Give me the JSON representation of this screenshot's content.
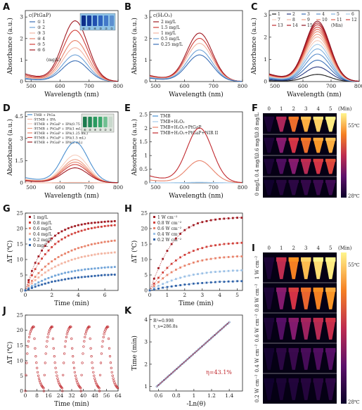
{
  "panels": {
    "A": "A",
    "B": "B",
    "C": "C",
    "D": "D",
    "E": "E",
    "F": "F",
    "G": "G",
    "H": "H",
    "I": "I",
    "J": "J",
    "K": "K"
  },
  "chart_data": [
    {
      "id": "A",
      "type": "line",
      "xlabel": "Wavelength (nm)",
      "ylabel": "Absorbance (a.u.)",
      "xlim": [
        480,
        800
      ],
      "ylim": [
        0,
        3.3
      ],
      "xticks": [
        500,
        600,
        700,
        800
      ],
      "yticks": [
        0,
        1,
        2,
        3
      ],
      "legend_title": "c(PtGaP)",
      "legend_unit": "(mg/L)",
      "peak_x": 652,
      "base_x": 480,
      "base_y_ratio": 0.13,
      "width": 62,
      "series": [
        {
          "name": "① 1",
          "peak": 0.95,
          "color": "#3b6fb6"
        },
        {
          "name": "② 2",
          "peak": 1.22,
          "color": "#6fa3d8"
        },
        {
          "name": "③ 3",
          "peak": 1.55,
          "color": "#f3b5a2"
        },
        {
          "name": "④ 4",
          "peak": 1.88,
          "color": "#e8836b"
        },
        {
          "name": "⑤ 5",
          "peak": 2.35,
          "color": "#d1403a"
        },
        {
          "name": "⑥ 6",
          "peak": 2.78,
          "color": "#a11a22"
        }
      ],
      "inset_labels": [
        "⑥",
        "⑤",
        "④",
        "③",
        "②",
        "①"
      ]
    },
    {
      "id": "B",
      "type": "line",
      "xlabel": "Wavelength (nm)",
      "ylabel": "Absorbance (a.u.)",
      "xlim": [
        480,
        800
      ],
      "ylim": [
        0,
        3.3
      ],
      "xticks": [
        500,
        600,
        700,
        800
      ],
      "yticks": [
        0,
        1,
        2,
        3
      ],
      "legend_title": "c(H₂O₂)",
      "peak_x": 652,
      "base_x": 480,
      "base_y_ratio": 0.13,
      "width": 62,
      "series": [
        {
          "name": "2 mg/L",
          "peak": 2.22,
          "color": "#a11a22"
        },
        {
          "name": "1.5 mg/L",
          "peak": 1.98,
          "color": "#d1403a"
        },
        {
          "name": "1 mg/L",
          "peak": 1.75,
          "color": "#f3b5a2"
        },
        {
          "name": "0.5 mg/L",
          "peak": 1.45,
          "color": "#6fa3d8"
        },
        {
          "name": "0.25 mg/L",
          "peak": 1.22,
          "color": "#3b6fb6"
        }
      ]
    },
    {
      "id": "C",
      "type": "line",
      "xlabel": "Wavelength (nm)",
      "ylabel": "Absorbance (a.u.)",
      "xlim": [
        480,
        800
      ],
      "ylim": [
        0,
        3.2
      ],
      "xticks": [
        500,
        600,
        700,
        800
      ],
      "yticks": [
        0,
        1,
        2,
        3
      ],
      "legend_unit": "(Min)",
      "peak_x": 652,
      "base_x": 480,
      "base_y_ratio": 0.13,
      "width": 62,
      "series": [
        {
          "name": "1",
          "peak": 0.32,
          "color": "#1a1a1a"
        },
        {
          "name": "2",
          "peak": 0.65,
          "color": "#2a3a80"
        },
        {
          "name": "3",
          "peak": 0.95,
          "color": "#3b6fb6"
        },
        {
          "name": "4",
          "peak": 1.22,
          "color": "#5c8fcc"
        },
        {
          "name": "5",
          "peak": 1.45,
          "color": "#7fb0de"
        },
        {
          "name": "6",
          "peak": 1.65,
          "color": "#a6cbea"
        },
        {
          "name": "7",
          "peak": 1.82,
          "color": "#f6cdbd"
        },
        {
          "name": "8",
          "peak": 1.98,
          "color": "#f3b5a2"
        },
        {
          "name": "9",
          "peak": 2.1,
          "color": "#eea085"
        },
        {
          "name": "10",
          "peak": 2.22,
          "color": "#e8836b"
        },
        {
          "name": "11",
          "peak": 2.32,
          "color": "#df6553"
        },
        {
          "name": "12",
          "peak": 2.42,
          "color": "#d1403a"
        },
        {
          "name": "13",
          "peak": 2.52,
          "color": "#bf2d30"
        },
        {
          "name": "14",
          "peak": 2.6,
          "color": "#ad1f28"
        },
        {
          "name": "15",
          "peak": 2.68,
          "color": "#8e1220"
        }
      ]
    },
    {
      "id": "D",
      "type": "line",
      "xlabel": "Wavelength (nm)",
      "ylabel": "Absorbance (a.u.)",
      "xlim": [
        480,
        800
      ],
      "ylim": [
        0,
        4.8
      ],
      "xticks": [
        500,
        600,
        700,
        800
      ],
      "yticks": [
        0,
        1.5,
        3.0,
        4.5
      ],
      "peak_x": 652,
      "base_x": 480,
      "base_y_ratio": 0.13,
      "width": 62,
      "series": [
        {
          "name": "TMB + PtGa",
          "peak": 2.72,
          "color": "#4a8fd0"
        },
        {
          "name": "①TMB + IPA",
          "peak": 0.03,
          "color": "#f3b5a2"
        },
        {
          "name": "②TMB + PtGaP + IPA(0.75 mL)",
          "peak": 1.85,
          "color": "#f6cdbd"
        },
        {
          "name": "③TMB + PtGaP + IPA(1 mL)",
          "peak": 1.55,
          "color": "#eea085"
        },
        {
          "name": "④TMB + PtGaP + IPA(1.25 mL)",
          "peak": 1.38,
          "color": "#e8836b"
        },
        {
          "name": "⑤TMB + PtGaP + IPA(1.5 mL)",
          "peak": 1.22,
          "color": "#d1403a"
        },
        {
          "name": "⑥TMB + PtGaP + IPA(2 mL)",
          "peak": 1.0,
          "color": "#a11a22"
        }
      ],
      "inset_labels": [
        "⑥",
        "⑤",
        "④",
        "③",
        "②",
        "①"
      ]
    },
    {
      "id": "E",
      "type": "line",
      "xlabel": "Wavelength (nm)",
      "ylabel": "Absorbance (a.u.)",
      "xlim": [
        480,
        800
      ],
      "ylim": [
        0,
        2.6
      ],
      "xticks": [
        500,
        600,
        700,
        800
      ],
      "yticks": [
        0.0,
        0.5,
        1.0,
        1.5,
        2.0,
        2.5
      ],
      "peak_x": 652,
      "base_x": 480,
      "base_y_ratio": 0.13,
      "width": 62,
      "series": [
        {
          "name": "TMB",
          "peak": 0.01,
          "color": "#4a8fd0"
        },
        {
          "name": "TMB+H₂O₂",
          "peak": 0.02,
          "color": "#a6cbea"
        },
        {
          "name": "TMB+H₂O₂+PtGaP",
          "peak": 0.8,
          "color": "#e8836b"
        },
        {
          "name": "TMB+H₂O₂+PtGaP+NIR II",
          "peak": 1.98,
          "color": "#c0282d"
        }
      ]
    },
    {
      "id": "G",
      "type": "scatter",
      "xlabel": "Time (min)",
      "ylabel": "ΔT (℃)",
      "xlim": [
        0,
        7
      ],
      "ylim": [
        0,
        25
      ],
      "xticks": [
        0,
        2,
        4,
        6
      ],
      "yticks": [
        0,
        5,
        10,
        15,
        20,
        25
      ],
      "x": [
        0,
        0.25,
        0.5,
        0.75,
        1,
        1.25,
        1.5,
        1.75,
        2,
        2.25,
        2.5,
        2.75,
        3,
        3.25,
        3.5,
        3.75,
        4,
        4.25,
        4.5,
        4.75,
        5,
        5.25,
        5.5,
        5.75,
        6,
        6.25,
        6.5,
        6.75
      ],
      "series": [
        {
          "name": "1 mg/L",
          "color": "#a11a22",
          "values": [
            0,
            3.3,
            6.3,
            8.9,
            11,
            12.9,
            14.4,
            15.7,
            16.8,
            17.7,
            18.5,
            19.1,
            19.6,
            20.1,
            20.5,
            20.8,
            21.1,
            21.3,
            21.5,
            21.7,
            21.8,
            21.9,
            22,
            22.1,
            22.2,
            22.3,
            22.3,
            22.4
          ]
        },
        {
          "name": "0.8 mg/L",
          "color": "#d1403a",
          "values": [
            0,
            2.6,
            4.9,
            6.9,
            8.7,
            10.3,
            11.7,
            12.9,
            14,
            15,
            15.8,
            16.5,
            17.1,
            17.7,
            18.2,
            18.6,
            19,
            19.3,
            19.6,
            19.9,
            20.1,
            20.3,
            20.5,
            20.6,
            20.8,
            20.9,
            21,
            21.1
          ]
        },
        {
          "name": "0.6 mg/L",
          "color": "#e8836b",
          "values": [
            0,
            1.6,
            3.1,
            4.4,
            5.6,
            6.7,
            7.7,
            8.6,
            9.4,
            10.1,
            10.8,
            11.4,
            11.9,
            12.4,
            12.9,
            13.3,
            13.7,
            14,
            14.3,
            14.6,
            14.9,
            15.1,
            15.3,
            15.5,
            15.7,
            15.8,
            16,
            16.1
          ]
        },
        {
          "name": "0.4 mg/L",
          "color": "#f3b5a2",
          "values": [
            0,
            1.2,
            2.3,
            3.3,
            4.2,
            5,
            5.8,
            6.5,
            7.1,
            7.7,
            8.2,
            8.7,
            9.1,
            9.5,
            9.9,
            10.2,
            10.5,
            10.8,
            11,
            11.2,
            11.4,
            11.6,
            11.8,
            11.9,
            12,
            12.1,
            12.2,
            12.3
          ]
        },
        {
          "name": "0.2 mg/L",
          "color": "#6fa3d8",
          "values": [
            0,
            0.7,
            1.4,
            2,
            2.6,
            3.1,
            3.6,
            4,
            4.4,
            4.8,
            5.1,
            5.4,
            5.7,
            5.9,
            6.1,
            6.3,
            6.5,
            6.6,
            6.8,
            6.9,
            7,
            7.1,
            7.2,
            7.3,
            7.4,
            7.5,
            7.5,
            7.6
          ]
        },
        {
          "name": "0 mg/L",
          "color": "#2f62a8",
          "values": [
            0,
            0.4,
            0.8,
            1.2,
            1.6,
            1.9,
            2.2,
            2.5,
            2.8,
            3,
            3.2,
            3.4,
            3.6,
            3.8,
            3.9,
            4.1,
            4.2,
            4.3,
            4.4,
            4.5,
            4.6,
            4.7,
            4.8,
            4.9,
            5,
            5,
            5.1,
            5.1
          ]
        }
      ]
    },
    {
      "id": "H",
      "type": "scatter",
      "xlabel": "Time (min)",
      "ylabel": "ΔT (℃)",
      "xlim": [
        0,
        5.3
      ],
      "ylim": [
        0,
        25
      ],
      "xticks": [
        0,
        1,
        2,
        3,
        4,
        5
      ],
      "yticks": [
        0,
        5,
        10,
        15,
        20,
        25
      ],
      "x": [
        0,
        0.25,
        0.5,
        0.75,
        1,
        1.25,
        1.5,
        1.75,
        2,
        2.25,
        2.5,
        2.75,
        3,
        3.25,
        3.5,
        3.75,
        4,
        4.25,
        4.5,
        4.75,
        5,
        5.25
      ],
      "series": [
        {
          "name": "1 W cm⁻²",
          "color": "#a11a22",
          "values": [
            0,
            3.8,
            7.2,
            10.2,
            12.8,
            15,
            16.8,
            18.3,
            19.5,
            20.4,
            21.1,
            21.7,
            22.1,
            22.4,
            22.7,
            22.9,
            23.1,
            23.2,
            23.3,
            23.4,
            23.5,
            23.5
          ]
        },
        {
          "name": "0.8 W cm⁻²",
          "color": "#d1403a",
          "values": [
            0,
            2.2,
            4.1,
            5.8,
            7.3,
            8.6,
            9.7,
            10.7,
            11.5,
            12.2,
            12.8,
            13.3,
            13.7,
            14.1,
            14.4,
            14.6,
            14.8,
            15,
            15.1,
            15.2,
            15.3,
            15.4
          ]
        },
        {
          "name": "0.6 W cm⁻²",
          "color": "#e8836b",
          "values": [
            0,
            1.4,
            2.7,
            3.9,
            5,
            5.9,
            6.7,
            7.4,
            8,
            8.5,
            9,
            9.4,
            9.7,
            10,
            10.2,
            10.4,
            10.6,
            10.7,
            10.8,
            10.9,
            11,
            11
          ]
        },
        {
          "name": "0.4 W cm⁻²",
          "color": "#9cc1e6",
          "values": [
            0,
            0.8,
            1.5,
            2.1,
            2.7,
            3.2,
            3.7,
            4.1,
            4.5,
            4.8,
            5.1,
            5.3,
            5.5,
            5.7,
            5.9,
            6,
            6.1,
            6.2,
            6.3,
            6.4,
            6.4,
            6.5
          ]
        },
        {
          "name": "0.2 W cm⁻²",
          "color": "#2f62a8",
          "values": [
            0,
            0.3,
            0.6,
            0.9,
            1.1,
            1.3,
            1.5,
            1.7,
            1.9,
            2,
            2.2,
            2.3,
            2.4,
            2.5,
            2.6,
            2.7,
            2.8,
            2.8,
            2.9,
            2.9,
            3,
            3
          ]
        }
      ]
    },
    {
      "id": "J",
      "type": "scatter",
      "xlabel": "Time (min)",
      "ylabel": "ΔT (℃)",
      "xlim": [
        0,
        64
      ],
      "ylim": [
        0,
        25
      ],
      "xticks": [
        0,
        8,
        16,
        24,
        32,
        40,
        48,
        56,
        64
      ],
      "yticks": [
        0,
        5,
        10,
        15,
        20,
        25
      ],
      "cycles": 5,
      "cycle_period": 12.8,
      "peak": 22,
      "color": "#c0282d"
    },
    {
      "id": "K",
      "type": "scatter",
      "xlabel": "-Ln(θ)",
      "ylabel": "Time (min)",
      "xlim": [
        0.5,
        1.55
      ],
      "ylim": [
        0.8,
        4.2
      ],
      "xticks": [
        0.6,
        0.8,
        1.0,
        1.2,
        1.4
      ],
      "yticks": [
        1,
        2,
        3,
        4
      ],
      "fit": {
        "x0": 0.58,
        "y0": 1.0,
        "x1": 1.4,
        "y1": 3.88
      },
      "annotations": {
        "r2": "R²=0.998",
        "tau": "τ_s=286.8s",
        "eta": "η=43.1%"
      },
      "color": "#2f62a8"
    }
  ],
  "thermal_F": {
    "times": [
      "0",
      "1",
      "2",
      "3",
      "4",
      "5"
    ],
    "unit": "(Min)",
    "rows": [
      "0.8 mg/L",
      "0.6 mg/L",
      "0.4 mg/L",
      "0 mg/L"
    ],
    "scale_max": "55℃",
    "scale_min": "28℃",
    "intensity": [
      [
        0.05,
        0.45,
        0.7,
        0.85,
        0.92,
        0.98
      ],
      [
        0.05,
        0.35,
        0.55,
        0.7,
        0.8,
        0.85
      ],
      [
        0.05,
        0.2,
        0.35,
        0.48,
        0.55,
        0.6
      ],
      [
        0.02,
        0.08,
        0.1,
        0.12,
        0.14,
        0.15
      ]
    ]
  },
  "thermal_I": {
    "times": [
      "0",
      "1",
      "2",
      "3",
      "4",
      "5"
    ],
    "unit": "(Min)",
    "rows": [
      "1 W cm⁻²",
      "0.8 W cm⁻²",
      "0.6 W cm⁻²",
      "0.4 W cm⁻²",
      "0.2 W cm⁻²"
    ],
    "scale_max": "55℃",
    "scale_min": "28℃",
    "intensity": [
      [
        0.05,
        0.5,
        0.75,
        0.88,
        0.95,
        0.98
      ],
      [
        0.05,
        0.35,
        0.55,
        0.68,
        0.75,
        0.8
      ],
      [
        0.05,
        0.22,
        0.35,
        0.42,
        0.48,
        0.52
      ],
      [
        0.03,
        0.1,
        0.14,
        0.18,
        0.2,
        0.22
      ],
      [
        0.02,
        0.05,
        0.07,
        0.08,
        0.09,
        0.1
      ]
    ]
  }
}
